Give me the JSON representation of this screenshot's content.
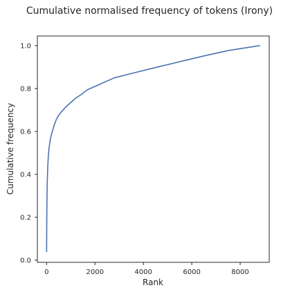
{
  "chart_data": {
    "type": "line",
    "title": "Cumulative normalised frequency of tokens (Irony)",
    "xlabel": "Rank",
    "ylabel": "Cumulative frequency",
    "xlim": [
      -380,
      9200
    ],
    "ylim": [
      -0.01,
      1.045
    ],
    "xticks": [
      0,
      2000,
      4000,
      6000,
      8000
    ],
    "xtick_labels": [
      "0",
      "2000",
      "4000",
      "6000",
      "8000"
    ],
    "yticks": [
      0.0,
      0.2,
      0.4,
      0.6,
      0.8,
      1.0
    ],
    "ytick_labels": [
      "0.0",
      "0.2",
      "0.4",
      "0.6",
      "0.8",
      "1.0"
    ],
    "grid": false,
    "series": [
      {
        "color": "#4c72b0",
        "x": [
          1,
          10,
          25,
          50,
          75,
          100,
          150,
          200,
          300,
          400,
          500,
          600,
          800,
          1000,
          1200,
          1400,
          1700,
          2000,
          2400,
          2800,
          3500,
          4500,
          5500,
          6500,
          7500,
          8800
        ],
        "y": [
          0.04,
          0.22,
          0.35,
          0.44,
          0.49,
          0.52,
          0.56,
          0.585,
          0.625,
          0.655,
          0.675,
          0.69,
          0.715,
          0.735,
          0.755,
          0.77,
          0.795,
          0.81,
          0.83,
          0.85,
          0.87,
          0.898,
          0.925,
          0.952,
          0.977,
          1.0
        ]
      }
    ]
  }
}
